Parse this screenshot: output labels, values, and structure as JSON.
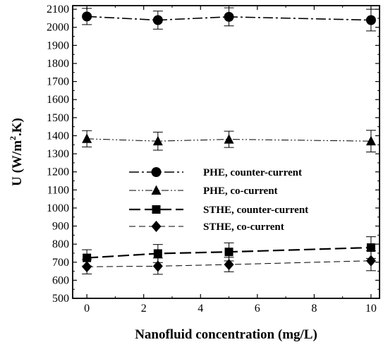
{
  "chart_data": {
    "type": "line",
    "title": "",
    "xlabel": "Nanofluid concentration (mg/L)",
    "ylabel_prefix": "U (W/m",
    "ylabel_sup": "2",
    "ylabel_suffix": ".K)",
    "xlim": [
      -0.5,
      10.3
    ],
    "ylim": [
      500,
      2120
    ],
    "xticks": [
      0,
      2,
      4,
      6,
      8,
      10
    ],
    "yticks": [
      500,
      600,
      700,
      800,
      900,
      1000,
      1100,
      1200,
      1300,
      1400,
      1500,
      1600,
      1700,
      1800,
      1900,
      2000,
      2100
    ],
    "x": [
      0,
      2.5,
      5,
      10
    ],
    "legend_position": "center-left",
    "series": [
      {
        "name": "PHE, counter-current",
        "values": [
          2060,
          2040,
          2058,
          2040
        ],
        "errors": [
          45,
          50,
          50,
          60
        ],
        "marker": "circle",
        "line": "dash-dot",
        "color": "#000000"
      },
      {
        "name": "PHE, co-current",
        "values": [
          1383,
          1370,
          1380,
          1370
        ],
        "errors": [
          45,
          50,
          45,
          60
        ],
        "marker": "triangle",
        "line": "dash-dot-dot",
        "color": "#000000"
      },
      {
        "name": "STHE, counter-current",
        "values": [
          724,
          748,
          757,
          781
        ],
        "errors": [
          45,
          50,
          50,
          60
        ],
        "marker": "square",
        "line": "long-dash",
        "color": "#000000"
      },
      {
        "name": "STHE, co-current",
        "values": [
          675,
          678,
          687,
          708
        ],
        "errors": [
          40,
          45,
          40,
          55
        ],
        "marker": "diamond",
        "line": "dash",
        "color": "#000000"
      }
    ]
  }
}
